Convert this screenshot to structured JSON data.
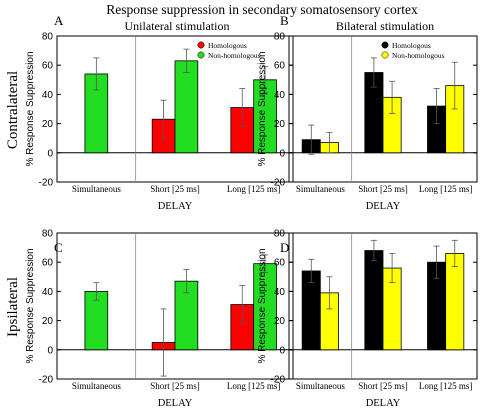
{
  "figure": {
    "title": "Response suppression in secondary somatosensory cortex",
    "col_titles": [
      "Unilateral stimulation",
      "Bilateral stimulation"
    ],
    "row_titles": [
      "Contralateral",
      "Ipsilateral"
    ]
  },
  "chart_data": [
    {
      "panel": "A",
      "type": "bar",
      "categories": [
        "Simultaneous",
        "Short [25 ms]",
        "Long [125 ms]"
      ],
      "xlabel": "DELAY",
      "ylabel": "% Response Suppression",
      "ylim": [
        -20,
        80
      ],
      "yticks": [
        -20,
        0,
        20,
        40,
        60,
        80
      ],
      "legend_position": "top-right",
      "series": [
        {
          "name": "Homologous",
          "color": "#ff0000",
          "values": [
            null,
            23,
            31
          ],
          "errors": [
            null,
            13,
            13
          ]
        },
        {
          "name": "Non-homologous",
          "color": "#22dd22",
          "values": [
            54,
            63,
            50
          ],
          "errors": [
            11,
            8,
            9
          ]
        }
      ]
    },
    {
      "panel": "B",
      "type": "bar",
      "categories": [
        "Simultaneous",
        "Short [25 ms]",
        "Long [125 ms]"
      ],
      "xlabel": "DELAY",
      "ylabel": "% Response Suppression",
      "ylim": [
        -20,
        80
      ],
      "yticks": [
        -20,
        0,
        20,
        40,
        60,
        80
      ],
      "legend_position": "top-right",
      "series": [
        {
          "name": "Homologous",
          "color": "#000000",
          "values": [
            9,
            55,
            32
          ],
          "errors": [
            10,
            10,
            12
          ]
        },
        {
          "name": "Non-homologous",
          "color": "#ffff00",
          "values": [
            7,
            38,
            46
          ],
          "errors": [
            7,
            11,
            16
          ]
        }
      ]
    },
    {
      "panel": "C",
      "type": "bar",
      "categories": [
        "Simultaneous",
        "Short [25 ms]",
        "Long [125 ms]"
      ],
      "xlabel": "DELAY",
      "ylabel": "% Response Suppression",
      "ylim": [
        -20,
        80
      ],
      "yticks": [
        -20,
        0,
        20,
        40,
        60,
        80
      ],
      "series": [
        {
          "name": "Homologous",
          "color": "#ff0000",
          "values": [
            null,
            5,
            31
          ],
          "errors": [
            null,
            23,
            13
          ]
        },
        {
          "name": "Non-homologous",
          "color": "#22dd22",
          "values": [
            40,
            47,
            59
          ],
          "errors": [
            6,
            8,
            6
          ]
        }
      ]
    },
    {
      "panel": "D",
      "type": "bar",
      "categories": [
        "Simultaneous",
        "Short [25 ms]",
        "Long [125 ms]"
      ],
      "xlabel": "DELAY",
      "ylabel": "% Response Suppression",
      "ylim": [
        -20,
        80
      ],
      "yticks": [
        -20,
        0,
        20,
        40,
        60,
        80
      ],
      "series": [
        {
          "name": "Homologous",
          "color": "#000000",
          "values": [
            54,
            68,
            60
          ],
          "errors": [
            8,
            7,
            11
          ]
        },
        {
          "name": "Non-homologous",
          "color": "#ffff00",
          "values": [
            39,
            56,
            66
          ],
          "errors": [
            11,
            10,
            9
          ]
        }
      ]
    }
  ]
}
